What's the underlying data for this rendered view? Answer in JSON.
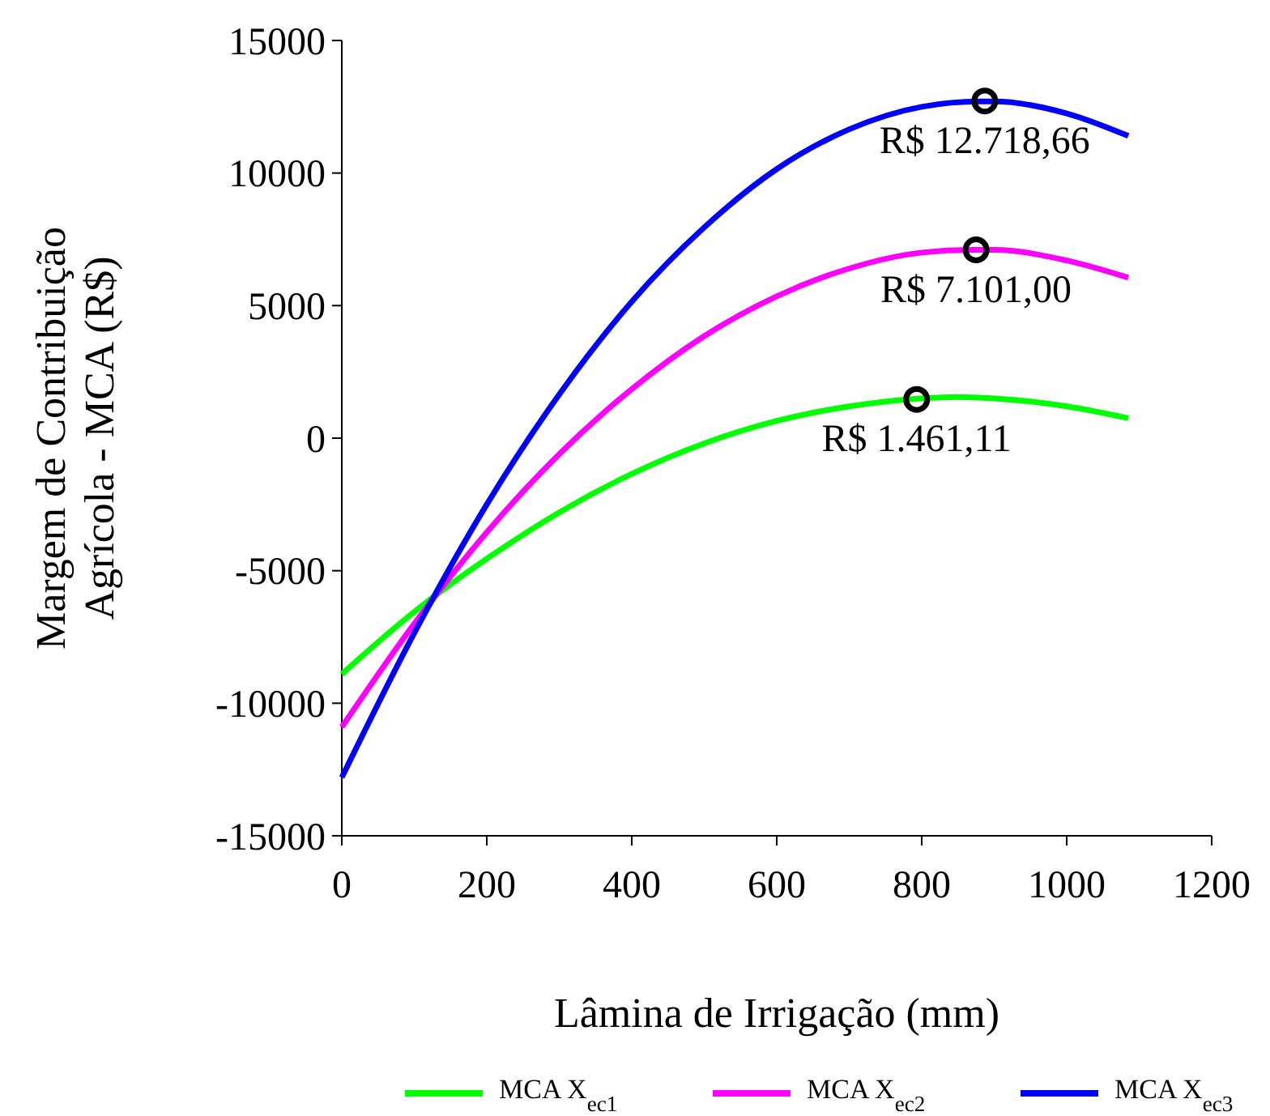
{
  "chart_data": {
    "type": "line",
    "xlabel": "Lâmina de Irrigação (mm)",
    "ylabel": "Margem de Contribuição\nAgrícola - MCA (R$)",
    "xlim": [
      0,
      1200
    ],
    "xticks": [
      0,
      200,
      400,
      600,
      800,
      1000,
      1200
    ],
    "ylim": [
      -15000,
      15000
    ],
    "yticks": [
      -15000,
      -10000,
      -5000,
      0,
      5000,
      10000,
      15000
    ],
    "grid": false,
    "legend": "bottom",
    "line_style": "solid",
    "series": [
      {
        "name": "MCA X$_{ec1}$",
        "color": "#00ff00",
        "x": [
          0,
          100,
          200,
          300,
          400,
          500,
          600,
          700,
          800,
          850,
          900,
          1000,
          1085
        ],
        "values": [
          -8900,
          -6550,
          -4550,
          -2800,
          -1350,
          -200,
          650,
          1200,
          1500,
          1550,
          1500,
          1200,
          750
        ]
      },
      {
        "name": "MCA X$_{ec2}$",
        "color": "#ff00ff",
        "x": [
          0,
          100,
          200,
          300,
          400,
          500,
          600,
          700,
          800,
          870,
          900,
          1000,
          1085
        ],
        "values": [
          -10900,
          -7000,
          -3550,
          -600,
          1850,
          3850,
          5350,
          6400,
          7000,
          7100,
          7100,
          6700,
          6050
        ]
      },
      {
        "name": "MCA X$_{ec3}$",
        "color": "#0000ff",
        "x": [
          0,
          100,
          200,
          300,
          400,
          500,
          600,
          700,
          800,
          880,
          900,
          1000,
          1085
        ],
        "values": [
          -12800,
          -7350,
          -2500,
          1650,
          5150,
          7950,
          10150,
          11650,
          12500,
          12700,
          12700,
          12250,
          11400
        ]
      },
      {
        "type": "scatter",
        "marker": "circle",
        "color": "#000000",
        "x": [
          793,
          875,
          887
        ],
        "values": [
          1461.11,
          7101,
          12718.66
        ],
        "value_labels": [
          "R$ 1.461,11",
          "R$ 7.101,00",
          "R$ 12.718,66"
        ]
      }
    ]
  }
}
